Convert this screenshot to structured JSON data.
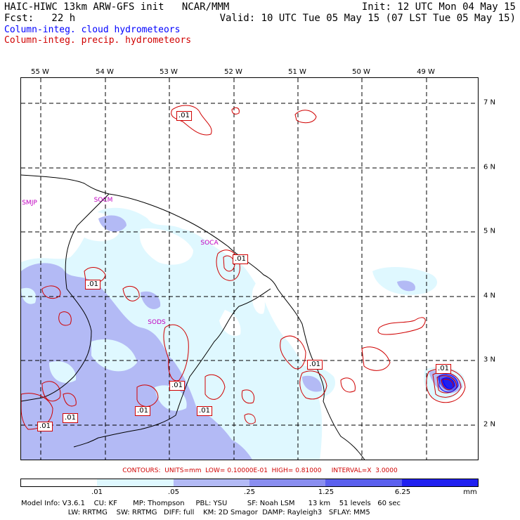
{
  "header": {
    "line1_left": "HAIC-HIWC 13km ARW-GFS init   NCAR/MMM",
    "line1_right": "Init: 12 UTC Mon 04 May 15",
    "line2_left": "Fcst:   22 h",
    "line2_right": "Valid: 10 UTC Tue 05 May 15 (07 LST Tue 05 May 15)",
    "legend_cloud": "Column-integ. cloud hydrometeors",
    "legend_precip": "Column-integ. precip. hydrometeors"
  },
  "colors": {
    "cloud": "#0000ff",
    "precip": "#d00000",
    "shade1": "#dff8ff",
    "shade2": "#b3baf5",
    "shade3": "#8a8ef0",
    "shade4": "#5b60ee",
    "shade5": "#2020f0",
    "station": "#c000c0"
  },
  "lon_labels": [
    "55 W",
    "54 W",
    "53 W",
    "52 W",
    "51 W",
    "50 W",
    "49 W"
  ],
  "lat_labels": [
    "7 N",
    "6 N",
    "5 N",
    "4 N",
    "3 N",
    "2 N"
  ],
  "stations": [
    "SMJP",
    "SOCM",
    "SOCA",
    "SODS"
  ],
  "contour_labels": [
    ".01",
    ".01",
    ".01",
    ".01",
    ".01",
    ".01",
    ".01",
    ".01",
    ".01",
    ".01"
  ],
  "contour_info": "CONTOURS:  UNITS=mm  LOW= 0.10000E-01  HIGH= 0.81000     INTERVAL=X  3.0000",
  "colorbar": {
    "ticks": [
      ".01",
      ".05",
      ".25",
      "1.25",
      "6.25"
    ],
    "unit": "mm"
  },
  "model_info": {
    "line1": "Model Info: V3.6.1    CU: KF       MP: Thompson     PBL: YSU         SF: Noah LSM      13 km    51 levels   60 sec",
    "line2": "                     LW: RRTMG    SW: RRTMG   DIFF: full    KM: 2D Smagor  DAMP: Rayleigh3   SFLAY: MM5"
  }
}
